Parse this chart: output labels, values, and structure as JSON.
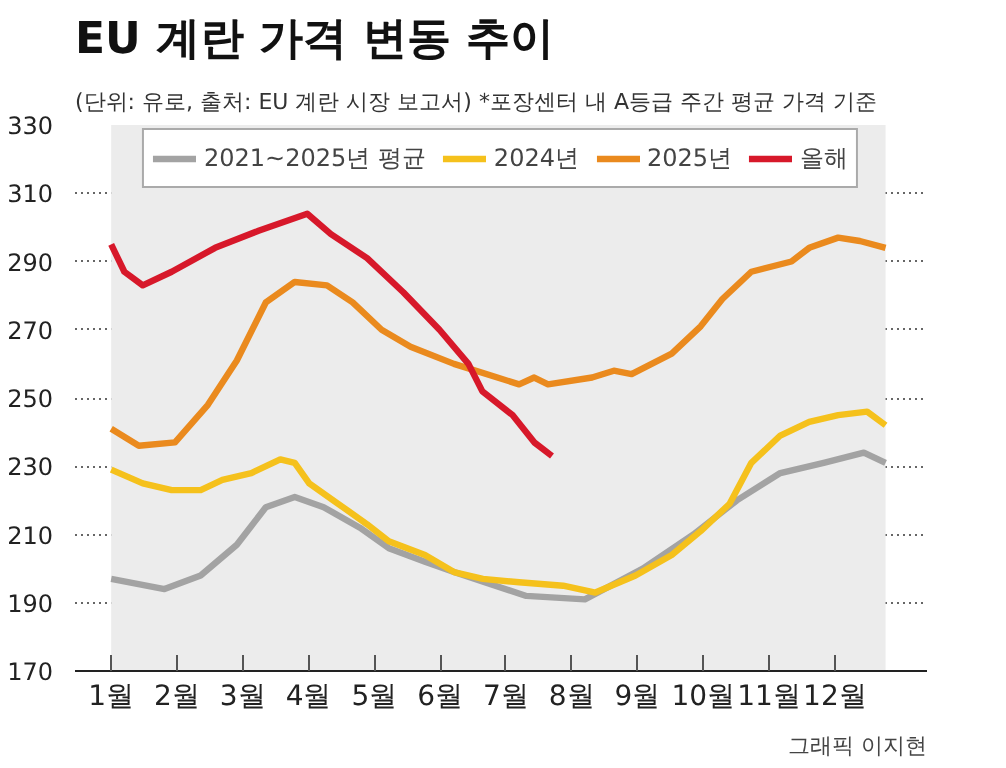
{
  "chart_data": {
    "type": "line",
    "title": "EU 계란 가격 변동 추이",
    "subtitle": "(단위: 유로, 출처: EU 계란 시장 보고서)  *포장센터 내 A등급 주간 평균 가격 기준",
    "annotations": [
      "그래픽 이지현"
    ],
    "xlim": [
      0.45,
      13.4
    ],
    "xticks": [
      {
        "value": 1,
        "label": "1월"
      },
      {
        "value": 2,
        "label": "2월"
      },
      {
        "value": 3,
        "label": "3월"
      },
      {
        "value": 4,
        "label": "4월"
      },
      {
        "value": 5,
        "label": "5월"
      },
      {
        "value": 6,
        "label": "6월"
      },
      {
        "value": 7,
        "label": "7월"
      },
      {
        "value": 8,
        "label": "8월"
      },
      {
        "value": 9,
        "label": "9월"
      },
      {
        "value": 10,
        "label": "10월"
      },
      {
        "value": 11,
        "label": "11월"
      },
      {
        "value": 12,
        "label": "12월"
      }
    ],
    "ylim": [
      170,
      330
    ],
    "yticks": [
      170,
      190,
      210,
      230,
      250,
      270,
      290,
      310,
      330
    ],
    "grid": "y",
    "legend": "top",
    "marker": "none",
    "line_style": "solid",
    "bands": [
      {
        "axis": "x",
        "from": 1,
        "to": 12.77,
        "color": "#ececec"
      }
    ],
    "series": [
      {
        "name": "2021~2025년 평균",
        "color": "#a3a3a3",
        "x": [
          1.0,
          1.81,
          2.36,
          2.91,
          3.35,
          3.79,
          4.23,
          4.78,
          5.22,
          5.77,
          6.21,
          7.31,
          8.2,
          9.08,
          9.85,
          10.51,
          11.17,
          11.83,
          12.44,
          12.77
        ],
        "values": [
          197,
          194,
          198,
          207,
          218,
          221,
          218,
          212,
          206,
          202,
          199,
          192,
          191,
          200,
          210,
          220,
          228,
          231,
          234,
          231
        ]
      },
      {
        "name": "2024년",
        "color": "#f5c11c",
        "x": [
          1.0,
          1.48,
          1.92,
          2.36,
          2.69,
          3.13,
          3.57,
          3.79,
          4.01,
          4.45,
          4.89,
          5.22,
          5.77,
          6.21,
          6.65,
          7.2,
          7.87,
          8.36,
          8.97,
          9.52,
          9.96,
          10.4,
          10.73,
          11.17,
          11.61,
          12.05,
          12.49,
          12.77
        ],
        "values": [
          229,
          225,
          223,
          223,
          226,
          228,
          232,
          231,
          225,
          219,
          213,
          208,
          204,
          199,
          197,
          196,
          195,
          193,
          198,
          204,
          211,
          219,
          231,
          239,
          243,
          245,
          246,
          242
        ]
      },
      {
        "name": "2025년",
        "color": "#ea8a1e",
        "x": [
          1.0,
          1.42,
          1.97,
          2.47,
          2.91,
          3.35,
          3.79,
          4.28,
          4.67,
          5.11,
          5.55,
          6.21,
          6.87,
          7.2,
          7.43,
          7.64,
          8.31,
          8.64,
          8.91,
          9.52,
          9.96,
          10.29,
          10.73,
          11.34,
          11.61,
          12.05,
          12.38,
          12.77
        ],
        "values": [
          241,
          236,
          237,
          248,
          261,
          278,
          284,
          283,
          278,
          270,
          265,
          260,
          256,
          254,
          256,
          254,
          256,
          258,
          257,
          263,
          271,
          279,
          287,
          290,
          294,
          297,
          296,
          294
        ]
      },
      {
        "name": "올해",
        "color": "#d7182a",
        "x": [
          1.0,
          1.2,
          1.48,
          1.92,
          2.58,
          3.24,
          3.98,
          4.34,
          4.89,
          5.44,
          5.99,
          6.43,
          6.64,
          7.1,
          7.43,
          7.7
        ],
        "values": [
          295,
          287,
          283,
          287,
          294,
          299,
          304,
          298,
          291,
          281,
          270,
          260,
          252,
          245,
          237,
          233
        ]
      }
    ]
  }
}
